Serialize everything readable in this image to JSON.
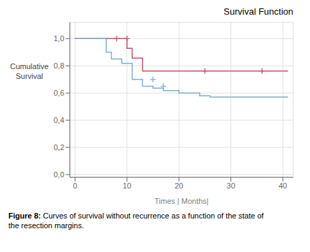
{
  "chart_data": {
    "type": "line",
    "title": "Survival Function",
    "xlabel": "Times | Months|",
    "ylabel": "Cumulative\nSurvival",
    "caption": [
      "Figure 8:",
      " Curves of survival without recurrence as a function of the state of\nthe resection margins."
    ],
    "xlim": [
      -1,
      42
    ],
    "ylim": [
      -0.02,
      1.12
    ],
    "xticks": [
      0,
      10,
      20,
      30,
      40
    ],
    "yticks": [
      {
        "value": 0.0,
        "label": "0,0"
      },
      {
        "value": 0.2,
        "label": "0,2"
      },
      {
        "value": 0.4,
        "label": "0,4"
      },
      {
        "value": 0.6,
        "label": "0,6"
      },
      {
        "value": 0.8,
        "label": "0,8"
      },
      {
        "value": 1.0,
        "label": "1,0"
      }
    ],
    "grid": true,
    "series": [
      {
        "type": "line",
        "line_style": "step",
        "color": "#c8506a",
        "x": [
          0,
          8,
          10,
          11,
          13,
          19,
          41
        ],
        "values": [
          1.0,
          1.0,
          0.929,
          0.857,
          0.762,
          0.762,
          0.762
        ]
      },
      {
        "type": "scatter",
        "marker": "+",
        "color": "#c8506a",
        "x": [
          8,
          10,
          25,
          36
        ],
        "values": [
          1.0,
          1.0,
          0.762,
          0.762
        ]
      },
      {
        "type": "line",
        "line_style": "step",
        "color": "#7ab0d4",
        "x": [
          0,
          6,
          7,
          9,
          11,
          13,
          15,
          17,
          20,
          24,
          26,
          41
        ],
        "values": [
          1.0,
          0.9,
          0.85,
          0.818,
          0.7,
          0.65,
          0.636,
          0.618,
          0.6,
          0.579,
          0.571,
          0.571
        ]
      },
      {
        "type": "scatter",
        "marker": "+",
        "color": "#7ab0d4",
        "x": [
          15,
          17
        ],
        "values": [
          0.7,
          0.65
        ]
      }
    ]
  }
}
